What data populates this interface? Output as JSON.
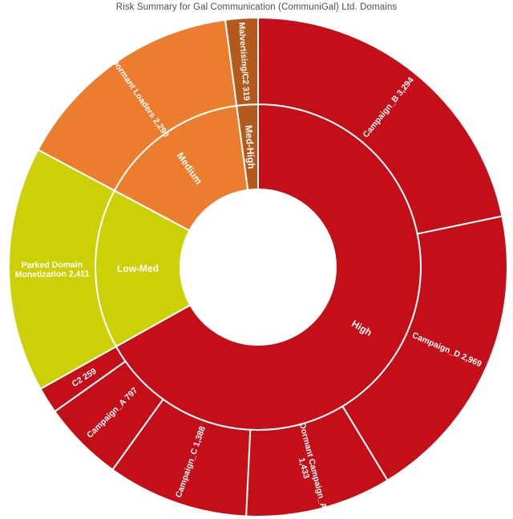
{
  "page": {
    "background": "#ffffff"
  },
  "chart_data": {
    "type": "sunburst",
    "title": "Risk Summary for Gal Communication (CommuniGal) Ltd. Domains",
    "title_color": "#4b4f58",
    "total": 15160,
    "separator_color": "#ffffff",
    "label_color": "#ffffff",
    "rotation": "clockwise",
    "start_angle_deg": 0,
    "legend": "none",
    "levels": [
      {
        "name": "High",
        "value": 10140,
        "color": "#c40e18",
        "label_lines": [
          "High"
        ]
      },
      {
        "name": "Low-Med",
        "value": 2411,
        "color": "#ccd007",
        "label_lines": [
          "Low-Med"
        ]
      },
      {
        "name": "Medium",
        "value": 2290,
        "color": "#ec7d2e",
        "label_lines": [
          "Medium"
        ]
      },
      {
        "name": "Med-High",
        "value": 319,
        "color": "#b55a1d",
        "label_lines": [
          "Med-High"
        ]
      }
    ],
    "segments": [
      {
        "name": "Campaign_B",
        "value": 3294,
        "level": "High",
        "label_lines": [
          "Campaign_B 3,294"
        ]
      },
      {
        "name": "Campaign_D",
        "value": 2969,
        "level": "High",
        "label_lines": [
          "Campaign_D 2,969"
        ]
      },
      {
        "name": "Dormant Campaign_A",
        "value": 1433,
        "level": "High",
        "label_lines": [
          "Dormant Campaign_A",
          "1,433"
        ]
      },
      {
        "name": "Campaign_C",
        "value": 1388,
        "level": "High",
        "label_lines": [
          "Campaign_C 1,388"
        ]
      },
      {
        "name": "Campaign_A",
        "value": 797,
        "level": "High",
        "label_lines": [
          "Campaign_A 797"
        ]
      },
      {
        "name": "C2",
        "value": 259,
        "level": "High",
        "label_lines": [
          "C2 259"
        ]
      },
      {
        "name": "Parked Domain Monetization",
        "value": 2411,
        "level": "Low-Med",
        "label_lines": [
          "Parked Domain",
          "Monetization 2,411"
        ]
      },
      {
        "name": "Dormant Loaders",
        "value": 2290,
        "level": "Medium",
        "label_lines": [
          "Dormant Loaders 2,290"
        ]
      },
      {
        "name": "Malvertising/C2",
        "value": 319,
        "level": "Med-High",
        "label_lines": [
          "Malvertising/C2 319"
        ]
      }
    ]
  }
}
